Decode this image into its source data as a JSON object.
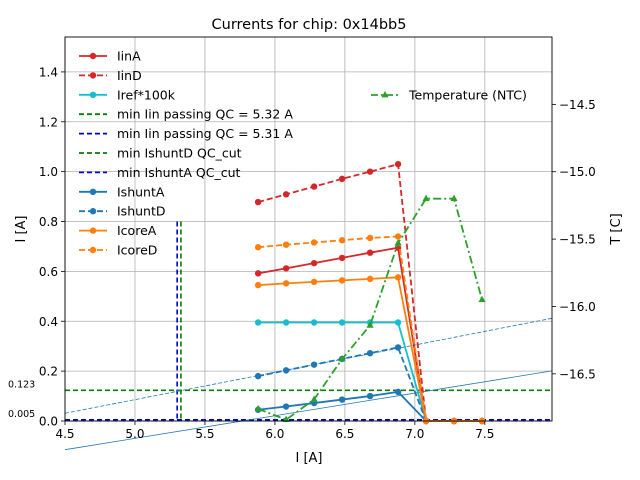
{
  "chart_data": {
    "type": "line",
    "title": "Currents for chip: 0x14bb5",
    "xlabel": "I [A]",
    "ylabel": "I [A]",
    "y2label": "T [C]",
    "xlim": [
      4.5,
      7.98
    ],
    "ylim": [
      0,
      1.54
    ],
    "y2lim": [
      -16.85,
      -14.0
    ],
    "grid": true,
    "xticks": [
      4.5,
      5.0,
      5.5,
      6.0,
      6.5,
      7.0,
      7.5
    ],
    "xtick_labels": [
      "4.5",
      "5.0",
      "5.5",
      "6.0",
      "6.5",
      "7.0",
      "7.5"
    ],
    "yticks": [
      0.0,
      0.2,
      0.4,
      0.6,
      0.8,
      1.0,
      1.2,
      1.4
    ],
    "ytick_labels": [
      "0.0",
      "0.2",
      "0.4",
      "0.6",
      "0.8",
      "1.0",
      "1.2",
      "1.4"
    ],
    "y2ticks": [
      -16.5,
      -16.0,
      -15.5,
      -15.0,
      -14.5
    ],
    "y2tick_labels": [
      "−16.5",
      "−16.0",
      "−15.5",
      "−15.0",
      "−14.5"
    ],
    "annotations": [
      {
        "text": "0.123",
        "y": 0.123
      },
      {
        "text": "0.005",
        "y": 0.005
      }
    ],
    "series": [
      {
        "name": "IinA",
        "color": "#d62728",
        "dash": "solid",
        "marker": "circle",
        "x": [
          5.88,
          6.08,
          6.28,
          6.48,
          6.68,
          6.88,
          7.08,
          7.28,
          7.48
        ],
        "y": [
          0.592,
          0.612,
          0.633,
          0.654,
          0.675,
          0.695,
          0.0,
          0.0,
          0.0
        ]
      },
      {
        "name": "IinD",
        "color": "#d62728",
        "dash": "dashed",
        "marker": "circle",
        "x": [
          5.88,
          6.08,
          6.28,
          6.48,
          6.68,
          6.88,
          7.08,
          7.28,
          7.48
        ],
        "y": [
          0.878,
          0.909,
          0.94,
          0.971,
          1.0,
          1.03,
          0.0,
          0.0,
          0.0
        ]
      },
      {
        "name": "Iref*100k",
        "color": "#17becf",
        "dash": "solid",
        "marker": "circle",
        "x": [
          5.88,
          6.08,
          6.28,
          6.48,
          6.68,
          6.88,
          7.08,
          7.28,
          7.48
        ],
        "y": [
          0.395,
          0.395,
          0.395,
          0.395,
          0.395,
          0.395,
          0.0,
          0.0,
          0.0
        ]
      },
      {
        "name": "IshuntA",
        "color": "#1f77b4",
        "dash": "solid",
        "marker": "circle",
        "x": [
          5.88,
          6.08,
          6.28,
          6.48,
          6.68,
          6.88,
          7.08,
          7.28,
          7.48
        ],
        "y": [
          0.045,
          0.058,
          0.072,
          0.086,
          0.1,
          0.117,
          0.0,
          0.0,
          0.0
        ]
      },
      {
        "name": "IshuntD",
        "color": "#1f77b4",
        "dash": "dashed",
        "marker": "circle",
        "x": [
          5.88,
          6.08,
          6.28,
          6.48,
          6.68,
          6.88,
          7.08,
          7.28,
          7.48
        ],
        "y": [
          0.18,
          0.203,
          0.226,
          0.249,
          0.272,
          0.295,
          0.0,
          0.0,
          0.0
        ]
      },
      {
        "name": "IcoreA",
        "color": "#ff7f0e",
        "dash": "solid",
        "marker": "circle",
        "x": [
          5.88,
          6.08,
          6.28,
          6.48,
          6.68,
          6.88,
          7.08,
          7.28,
          7.48
        ],
        "y": [
          0.545,
          0.552,
          0.558,
          0.564,
          0.57,
          0.576,
          0.0,
          0.0,
          0.0
        ]
      },
      {
        "name": "IcoreD",
        "color": "#ff7f0e",
        "dash": "dashed",
        "marker": "circle",
        "x": [
          5.88,
          6.08,
          6.28,
          6.48,
          6.68,
          6.88,
          7.08,
          7.28,
          7.48
        ],
        "y": [
          0.697,
          0.707,
          0.716,
          0.725,
          0.734,
          0.74,
          0.0,
          0.0,
          0.0
        ]
      }
    ],
    "reference_lines": [
      {
        "name": "min Iin passing QC = 5.32 A",
        "color": "#008000",
        "orientation": "vertical",
        "value": 5.32
      },
      {
        "name": "min Iin passing QC = 5.31 A",
        "color": "#0000cd",
        "orientation": "vertical",
        "value": 5.31
      },
      {
        "name": "min IshuntD QC_cut",
        "color": "#008000",
        "orientation": "horizontal",
        "value": 0.123
      },
      {
        "name": "min IshuntA QC_cut",
        "color": "#0000cd",
        "orientation": "horizontal",
        "value": 0.005
      }
    ],
    "fit_lines": [
      {
        "series": "IshuntD",
        "color": "#1f77b4",
        "dash": "dashed",
        "x": [
          4.5,
          7.98
        ],
        "y": [
          0.031,
          0.412
        ]
      },
      {
        "series": "IshuntA",
        "color": "#1f77b4",
        "dash": "solid",
        "x": [
          4.5,
          7.98
        ],
        "y": [
          -0.115,
          0.201
        ]
      }
    ],
    "temperature_series": {
      "name": "Temperature (NTC)",
      "color": "#2ca02c",
      "dash": "dashdot",
      "marker": "triangle",
      "axis": "right",
      "x": [
        5.88,
        6.08,
        6.28,
        6.48,
        6.68,
        6.88,
        7.08,
        7.28,
        7.48
      ],
      "y": [
        -16.76,
        -16.84,
        -16.69,
        -16.39,
        -16.14,
        -15.53,
        -15.2,
        -15.2,
        -15.95
      ]
    },
    "legend_left": {
      "position": "upper-left",
      "entries": [
        "IinA",
        "IinD",
        "Iref*100k",
        "min Iin passing QC = 5.32 A",
        "min Iin passing QC = 5.31 A",
        "min IshuntD QC_cut",
        "min IshuntA QC_cut",
        "IshuntA",
        "IshuntD",
        "IcoreA",
        "IcoreD"
      ]
    },
    "legend_right": {
      "position": "upper-right",
      "entries": [
        "Temperature (NTC)"
      ]
    }
  }
}
